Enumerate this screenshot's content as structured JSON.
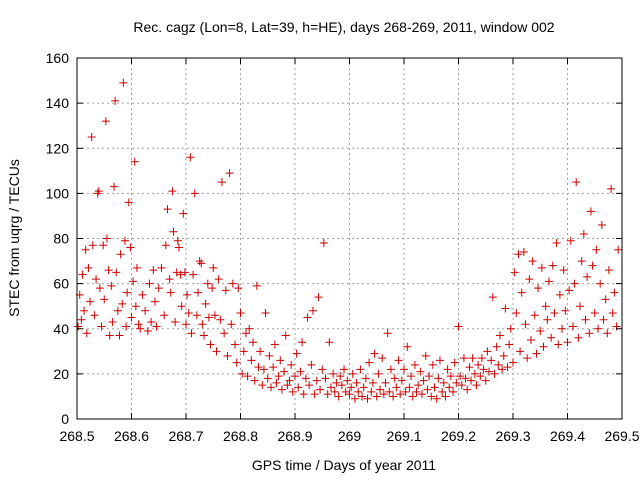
{
  "chart_data": {
    "type": "scatter",
    "title": "Rec. cagz (Lon=8, Lat=39, h=HE), days 268-269, 2011, window 002",
    "xlabel": "GPS time / Days of year 2011",
    "ylabel": "STEC from uqrg / TECUs",
    "xlim": [
      268.5,
      269.5
    ],
    "ylim": [
      0,
      160
    ],
    "xticks": [
      "268.5",
      "268.6",
      "268.7",
      "268.8",
      "268.9",
      "269",
      "269.1",
      "269.2",
      "269.3",
      "269.4",
      "269.5"
    ],
    "xtick_values": [
      268.5,
      268.6,
      268.7,
      268.8,
      268.9,
      269.0,
      269.1,
      269.2,
      269.3,
      269.4,
      269.5
    ],
    "yticks": [
      "0",
      "20",
      "40",
      "60",
      "80",
      "100",
      "120",
      "140",
      "160"
    ],
    "ytick_values": [
      0,
      20,
      40,
      60,
      80,
      100,
      120,
      140,
      160
    ],
    "grid": true,
    "marker": "+",
    "color": "#cc0000",
    "series": [
      {
        "points": [
          [
            268.502,
            41
          ],
          [
            268.505,
            55
          ],
          [
            268.508,
            44
          ],
          [
            268.51,
            64
          ],
          [
            268.513,
            48
          ],
          [
            268.516,
            75
          ],
          [
            268.518,
            38
          ],
          [
            268.521,
            67
          ],
          [
            268.524,
            52
          ],
          [
            268.527,
            125
          ],
          [
            268.529,
            77
          ],
          [
            268.532,
            46
          ],
          [
            268.535,
            62
          ],
          [
            268.538,
            100
          ],
          [
            268.54,
            101
          ],
          [
            268.542,
            58
          ],
          [
            268.545,
            41
          ],
          [
            268.548,
            77
          ],
          [
            268.55,
            53
          ],
          [
            268.553,
            132
          ],
          [
            268.555,
            80
          ],
          [
            268.558,
            66
          ],
          [
            268.56,
            37
          ],
          [
            268.563,
            59
          ],
          [
            268.565,
            43
          ],
          [
            268.568,
            103
          ],
          [
            268.57,
            141
          ],
          [
            268.572,
            65
          ],
          [
            268.575,
            48
          ],
          [
            268.578,
            37
          ],
          [
            268.58,
            73
          ],
          [
            268.583,
            51
          ],
          [
            268.585,
            149
          ],
          [
            268.588,
            79
          ],
          [
            268.59,
            41
          ],
          [
            268.592,
            56
          ],
          [
            268.595,
            96
          ],
          [
            268.598,
            76
          ],
          [
            268.6,
            45
          ],
          [
            268.603,
            61
          ],
          [
            268.606,
            114
          ],
          [
            268.608,
            50
          ],
          [
            268.61,
            67
          ],
          [
            268.613,
            42
          ],
          [
            268.616,
            40
          ],
          [
            268.62,
            55
          ],
          [
            268.625,
            48
          ],
          [
            268.63,
            39
          ],
          [
            268.633,
            60
          ],
          [
            268.636,
            43
          ],
          [
            268.64,
            66
          ],
          [
            268.643,
            52
          ],
          [
            268.646,
            41
          ],
          [
            268.65,
            58
          ],
          [
            268.655,
            67
          ],
          [
            268.66,
            46
          ],
          [
            268.663,
            77
          ],
          [
            268.666,
            93
          ],
          [
            268.67,
            62
          ],
          [
            268.672,
            56
          ],
          [
            268.675,
            101
          ],
          [
            268.677,
            83
          ],
          [
            268.68,
            43
          ],
          [
            268.683,
            65
          ],
          [
            268.685,
            79
          ],
          [
            268.687,
            76
          ],
          [
            268.69,
            64
          ],
          [
            268.692,
            50
          ],
          [
            268.695,
            91
          ],
          [
            268.698,
            65
          ],
          [
            268.7,
            42
          ],
          [
            268.702,
            55
          ],
          [
            268.705,
            47
          ],
          [
            268.708,
            116
          ],
          [
            268.71,
            38
          ],
          [
            268.713,
            64
          ],
          [
            268.716,
            100
          ],
          [
            268.72,
            46
          ],
          [
            268.722,
            56
          ],
          [
            268.725,
            70
          ],
          [
            268.728,
            69
          ],
          [
            268.73,
            42
          ],
          [
            268.733,
            37
          ],
          [
            268.736,
            51
          ],
          [
            268.74,
            60
          ],
          [
            268.742,
            45
          ],
          [
            268.745,
            33
          ],
          [
            268.748,
            58
          ],
          [
            268.75,
            67
          ],
          [
            268.753,
            46
          ],
          [
            268.756,
            30
          ],
          [
            268.76,
            62
          ],
          [
            268.763,
            44
          ],
          [
            268.766,
            105
          ],
          [
            268.77,
            38
          ],
          [
            268.773,
            57
          ],
          [
            268.776,
            28
          ],
          [
            268.78,
            109
          ],
          [
            268.783,
            42
          ],
          [
            268.786,
            60
          ],
          [
            268.79,
            33
          ],
          [
            268.793,
            25
          ],
          [
            268.796,
            58
          ],
          [
            268.8,
            47
          ],
          [
            268.803,
            20
          ],
          [
            268.806,
            30
          ],
          [
            268.81,
            38
          ],
          [
            268.813,
            19
          ],
          [
            268.816,
            40
          ],
          [
            268.82,
            26
          ],
          [
            268.823,
            34
          ],
          [
            268.826,
            17
          ],
          [
            268.83,
            59
          ],
          [
            268.833,
            23
          ],
          [
            268.836,
            30
          ],
          [
            268.84,
            15
          ],
          [
            268.843,
            22
          ],
          [
            268.846,
            47
          ],
          [
            268.85,
            18
          ],
          [
            268.853,
            28
          ],
          [
            268.856,
            14
          ],
          [
            268.86,
            23
          ],
          [
            268.863,
            33
          ],
          [
            268.866,
            16
          ],
          [
            268.87,
            19
          ],
          [
            268.873,
            26
          ],
          [
            268.876,
            13
          ],
          [
            268.88,
            21
          ],
          [
            268.883,
            37
          ],
          [
            268.886,
            15
          ],
          [
            268.89,
            17
          ],
          [
            268.893,
            24
          ],
          [
            268.896,
            12
          ],
          [
            268.9,
            19
          ],
          [
            268.903,
            29
          ],
          [
            268.906,
            14
          ],
          [
            268.91,
            21
          ],
          [
            268.913,
            34
          ],
          [
            268.916,
            11
          ],
          [
            268.92,
            18
          ],
          [
            268.923,
            45
          ],
          [
            268.926,
            15
          ],
          [
            268.93,
            24
          ],
          [
            268.933,
            48
          ],
          [
            268.936,
            11
          ],
          [
            268.94,
            17
          ],
          [
            268.943,
            54
          ],
          [
            268.946,
            13
          ],
          [
            268.95,
            22
          ],
          [
            268.953,
            78
          ],
          [
            268.956,
            18
          ],
          [
            268.96,
            11
          ],
          [
            268.963,
            34
          ],
          [
            268.966,
            14
          ],
          [
            268.97,
            20
          ],
          [
            268.973,
            12
          ],
          [
            268.976,
            16
          ],
          [
            268.98,
            10
          ],
          [
            268.983,
            19
          ],
          [
            268.986,
            15
          ],
          [
            268.99,
            22
          ],
          [
            268.993,
            12
          ],
          [
            268.996,
            17
          ],
          [
            269.0,
            11
          ],
          [
            269.003,
            14
          ],
          [
            269.006,
            20
          ],
          [
            269.01,
            9
          ],
          [
            269.013,
            16
          ],
          [
            269.016,
            12
          ],
          [
            269.02,
            22
          ],
          [
            269.023,
            10
          ],
          [
            269.026,
            14
          ],
          [
            269.03,
            18
          ],
          [
            269.033,
            9
          ],
          [
            269.036,
            25
          ],
          [
            269.04,
            12
          ],
          [
            269.043,
            16
          ],
          [
            269.046,
            29
          ],
          [
            269.05,
            10
          ],
          [
            269.053,
            20
          ],
          [
            269.056,
            13
          ],
          [
            269.06,
            27
          ],
          [
            269.063,
            11
          ],
          [
            269.066,
            16
          ],
          [
            269.07,
            38
          ],
          [
            269.073,
            12
          ],
          [
            269.076,
            22
          ],
          [
            269.08,
            10
          ],
          [
            269.083,
            18
          ],
          [
            269.086,
            14
          ],
          [
            269.09,
            26
          ],
          [
            269.093,
            11
          ],
          [
            269.096,
            17
          ],
          [
            269.1,
            22
          ],
          [
            269.103,
            12
          ],
          [
            269.106,
            32
          ],
          [
            269.11,
            14
          ],
          [
            269.113,
            19
          ],
          [
            269.116,
            10
          ],
          [
            269.12,
            24
          ],
          [
            269.123,
            12
          ],
          [
            269.126,
            15
          ],
          [
            269.13,
            21
          ],
          [
            269.133,
            11
          ],
          [
            269.136,
            17
          ],
          [
            269.14,
            28
          ],
          [
            269.143,
            13
          ],
          [
            269.146,
            19
          ],
          [
            269.15,
            10
          ],
          [
            269.153,
            24
          ],
          [
            269.156,
            14
          ],
          [
            269.16,
            9
          ],
          [
            269.163,
            18
          ],
          [
            269.166,
            26
          ],
          [
            269.17,
            12
          ],
          [
            269.173,
            16
          ],
          [
            269.176,
            10
          ],
          [
            269.18,
            22
          ],
          [
            269.183,
            14
          ],
          [
            269.186,
            19
          ],
          [
            269.19,
            12
          ],
          [
            269.193,
            25
          ],
          [
            269.196,
            16
          ],
          [
            269.2,
            41
          ],
          [
            269.203,
            19
          ],
          [
            269.206,
            15
          ],
          [
            269.21,
            27
          ],
          [
            269.213,
            18
          ],
          [
            269.216,
            13
          ],
          [
            269.22,
            23
          ],
          [
            269.223,
            17
          ],
          [
            269.226,
            27
          ],
          [
            269.23,
            20
          ],
          [
            269.233,
            15
          ],
          [
            269.236,
            24
          ],
          [
            269.24,
            19
          ],
          [
            269.243,
            27
          ],
          [
            269.246,
            22
          ],
          [
            269.25,
            17
          ],
          [
            269.253,
            30
          ],
          [
            269.256,
            21
          ],
          [
            269.26,
            26
          ],
          [
            269.263,
            54
          ],
          [
            269.266,
            20
          ],
          [
            269.27,
            32
          ],
          [
            269.273,
            24
          ],
          [
            269.276,
            37
          ],
          [
            269.28,
            22
          ],
          [
            269.283,
            28
          ],
          [
            269.286,
            49
          ],
          [
            269.29,
            23
          ],
          [
            269.293,
            33
          ],
          [
            269.296,
            40
          ],
          [
            269.3,
            25
          ],
          [
            269.303,
            65
          ],
          [
            269.306,
            47
          ],
          [
            269.31,
            73
          ],
          [
            269.313,
            30
          ],
          [
            269.316,
            56
          ],
          [
            269.32,
            74
          ],
          [
            269.323,
            42
          ],
          [
            269.326,
            27
          ],
          [
            269.33,
            62
          ],
          [
            269.333,
            35
          ],
          [
            269.336,
            70
          ],
          [
            269.34,
            46
          ],
          [
            269.343,
            29
          ],
          [
            269.346,
            58
          ],
          [
            269.35,
            39
          ],
          [
            269.353,
            67
          ],
          [
            269.356,
            32
          ],
          [
            269.36,
            50
          ],
          [
            269.363,
            44
          ],
          [
            269.366,
            61
          ],
          [
            269.37,
            36
          ],
          [
            269.373,
            68
          ],
          [
            269.376,
            47
          ],
          [
            269.38,
            78
          ],
          [
            269.383,
            33
          ],
          [
            269.386,
            55
          ],
          [
            269.39,
            40
          ],
          [
            269.393,
            66
          ],
          [
            269.396,
            48
          ],
          [
            269.4,
            34
          ],
          [
            269.403,
            57
          ],
          [
            269.406,
            79
          ],
          [
            269.41,
            41
          ],
          [
            269.413,
            60
          ],
          [
            269.416,
            105
          ],
          [
            269.42,
            36
          ],
          [
            269.423,
            50
          ],
          [
            269.426,
            70
          ],
          [
            269.43,
            82
          ],
          [
            269.433,
            44
          ],
          [
            269.436,
            63
          ],
          [
            269.44,
            38
          ],
          [
            269.443,
            92
          ],
          [
            269.446,
            68
          ],
          [
            269.45,
            47
          ],
          [
            269.453,
            75
          ],
          [
            269.456,
            40
          ],
          [
            269.46,
            60
          ],
          [
            269.463,
            86
          ],
          [
            269.466,
            44
          ],
          [
            269.47,
            53
          ],
          [
            269.473,
            38
          ],
          [
            269.476,
            66
          ],
          [
            269.48,
            102
          ],
          [
            269.483,
            47
          ],
          [
            269.486,
            56
          ],
          [
            269.49,
            41
          ],
          [
            269.493,
            75
          ]
        ]
      }
    ]
  }
}
